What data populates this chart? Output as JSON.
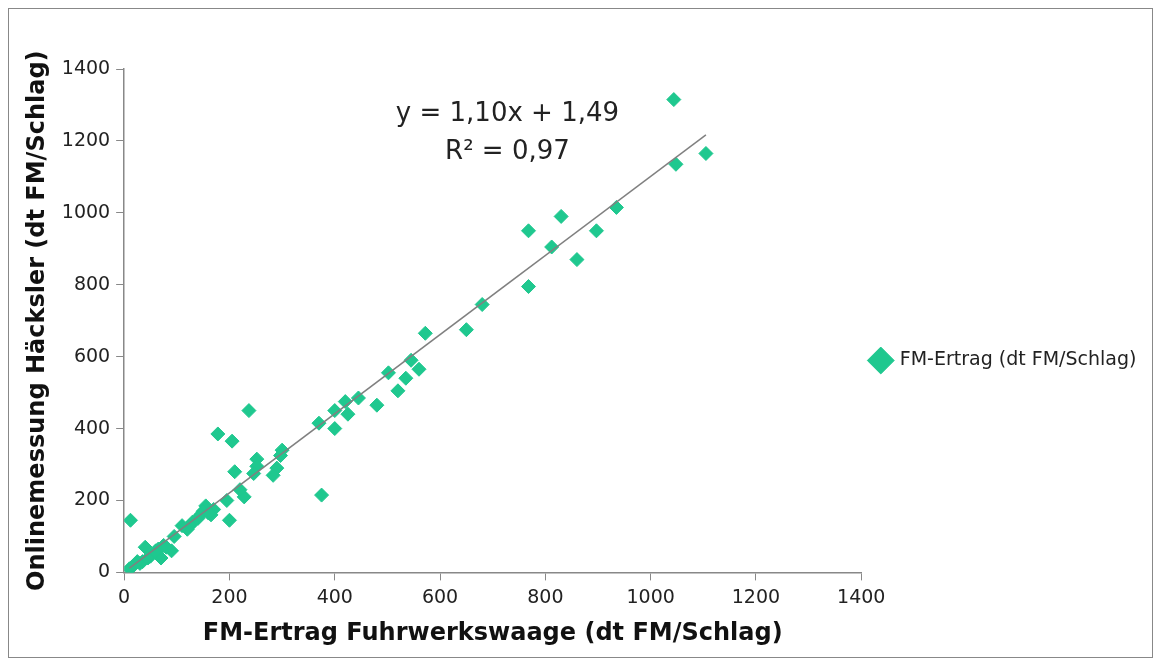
{
  "chart_data": {
    "type": "scatter",
    "xlabel": "FM-Ertrag Fuhrwerkswaage (dt FM/Schlag)",
    "ylabel": "Onlinemessung Häcksler (dt FM/Schlag)",
    "annotations": [
      "y = 1,10x + 1,49",
      "R² = 0,97"
    ],
    "xlim": [
      0,
      1400
    ],
    "xticks": [
      0,
      200,
      400,
      600,
      800,
      1000,
      1200,
      1400
    ],
    "ylim": [
      0,
      1400
    ],
    "yticks": [
      0,
      200,
      400,
      600,
      800,
      1000,
      1200,
      1400
    ],
    "grid": false,
    "legend": "right",
    "marker": "diamond",
    "series": [
      {
        "name": "FM-Ertrag (dt FM/Schlag)",
        "color": "#1fc88f",
        "x": [
          1044,
          1048,
          1105,
          935,
          897,
          860,
          830,
          812,
          768,
          768,
          680,
          650,
          572,
          560,
          545,
          535,
          520,
          502,
          480,
          445,
          425,
          420,
          400,
          400,
          375,
          370,
          300,
          297,
          290,
          283,
          252,
          252,
          246,
          237,
          228,
          220,
          210,
          205,
          200,
          195,
          178,
          170,
          165,
          155,
          150,
          145,
          140,
          130,
          125,
          120,
          95,
          90,
          75,
          70,
          65,
          50,
          40,
          35,
          30,
          25,
          15,
          10,
          12,
          45,
          60,
          80,
          110,
          160
        ],
        "values": [
          1315,
          1135,
          1165,
          1015,
          950,
          870,
          990,
          905,
          950,
          795,
          745,
          675,
          665,
          565,
          590,
          540,
          505,
          555,
          465,
          485,
          440,
          475,
          450,
          400,
          215,
          415,
          340,
          325,
          290,
          270,
          315,
          295,
          275,
          450,
          210,
          230,
          280,
          365,
          145,
          200,
          385,
          175,
          160,
          185,
          170,
          160,
          150,
          140,
          130,
          120,
          100,
          60,
          75,
          40,
          65,
          45,
          70,
          30,
          25,
          30,
          15,
          10,
          145,
          40,
          60,
          70,
          130,
          165
        ]
      },
      {
        "type": "line",
        "color": "#808080",
        "marker": "none",
        "x": [
          10,
          1105
        ],
        "values": [
          12,
          1217
        ]
      }
    ]
  }
}
